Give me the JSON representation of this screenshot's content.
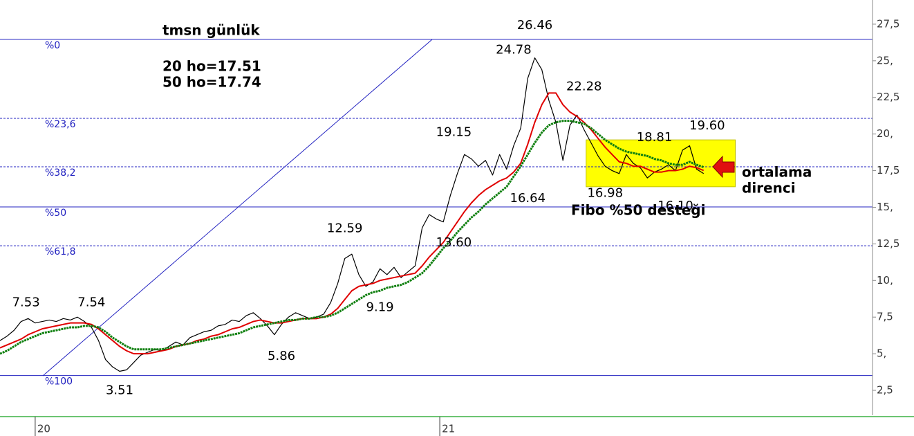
{
  "chart_data": {
    "type": "line",
    "texts": {
      "title": "tmsn günlük",
      "ma20_note": "20 ho=17.51",
      "ma50_note": "50 ho=17.74",
      "support": "Fibo %50 desteği",
      "resistance_1": "ortalama",
      "resistance_2": "direnci"
    },
    "xlim": [
      0,
      124
    ],
    "ylim": [
      0.8,
      29.15
    ],
    "xticks": [
      {
        "value": 5,
        "label": "20"
      },
      {
        "value": 62.5,
        "label": "21"
      }
    ],
    "yticks": [
      {
        "value": 2.5,
        "label": "2,5"
      },
      {
        "value": 5,
        "label": "5,"
      },
      {
        "value": 7.5,
        "label": "7,5"
      },
      {
        "value": 10,
        "label": "10,"
      },
      {
        "value": 12.5,
        "label": "12,5"
      },
      {
        "value": 15,
        "label": "15,"
      },
      {
        "value": 17.5,
        "label": "17,5"
      },
      {
        "value": 20,
        "label": "20,"
      },
      {
        "value": 22.5,
        "label": "22,5"
      },
      {
        "value": 25,
        "label": "25,"
      },
      {
        "value": 27.5,
        "label": "27,5"
      }
    ],
    "x": [
      0,
      1,
      2,
      3,
      4,
      5,
      6,
      7,
      8,
      9,
      10,
      11,
      12,
      13,
      14,
      15,
      16,
      17,
      18,
      19,
      20,
      21,
      22,
      23,
      24,
      25,
      26,
      27,
      28,
      29,
      30,
      31,
      32,
      33,
      34,
      35,
      36,
      37,
      38,
      39,
      40,
      41,
      42,
      43,
      44,
      45,
      46,
      47,
      48,
      49,
      50,
      51,
      52,
      53,
      54,
      55,
      56,
      57,
      58,
      59,
      60,
      61,
      62,
      63,
      64,
      65,
      66,
      67,
      68,
      69,
      70,
      71,
      72,
      73,
      74,
      75,
      76,
      77,
      78,
      79,
      80,
      81,
      82,
      83,
      84,
      85,
      86,
      87,
      88,
      89,
      90,
      91,
      92,
      93,
      94,
      95,
      96,
      97,
      98,
      99,
      100
    ],
    "series": [
      {
        "name": "tmsn",
        "color": "#000000",
        "values": [
          5.9,
          6.2,
          6.6,
          7.2,
          7.4,
          7.1,
          7.2,
          7.3,
          7.2,
          7.4,
          7.3,
          7.5,
          7.2,
          6.8,
          5.9,
          4.6,
          4.1,
          3.8,
          3.9,
          4.4,
          4.9,
          5.1,
          5.3,
          5.2,
          5.5,
          5.8,
          5.6,
          6.1,
          6.3,
          6.5,
          6.6,
          6.9,
          7.0,
          7.3,
          7.2,
          7.6,
          7.8,
          7.4,
          6.9,
          6.3,
          7.0,
          7.5,
          7.8,
          7.6,
          7.4,
          7.5,
          7.7,
          8.5,
          9.8,
          11.5,
          11.8,
          10.4,
          9.6,
          9.9,
          10.8,
          10.4,
          10.9,
          10.2,
          10.6,
          11.0,
          13.6,
          14.5,
          14.2,
          14.0,
          15.8,
          17.3,
          18.6,
          18.3,
          17.8,
          18.2,
          17.2,
          18.6,
          17.6,
          19.2,
          20.4,
          23.8,
          25.2,
          24.4,
          22.3,
          20.8,
          18.2,
          20.6,
          21.3,
          20.3,
          19.4,
          18.5,
          17.8,
          17.5,
          17.3,
          18.6,
          18.0,
          17.7,
          17.0,
          17.4,
          17.6,
          17.9,
          17.5,
          18.9,
          19.2,
          17.6,
          17.3
        ]
      },
      {
        "name": "20 ho",
        "color": "#e00000",
        "values": [
          5.4,
          5.6,
          5.8,
          6.0,
          6.3,
          6.5,
          6.7,
          6.8,
          6.9,
          7.0,
          7.1,
          7.1,
          7.1,
          7.0,
          6.7,
          6.3,
          5.9,
          5.5,
          5.2,
          5.0,
          5.0,
          5.0,
          5.1,
          5.2,
          5.3,
          5.5,
          5.6,
          5.7,
          5.9,
          6.0,
          6.2,
          6.3,
          6.5,
          6.7,
          6.8,
          7.0,
          7.2,
          7.3,
          7.2,
          7.1,
          7.1,
          7.2,
          7.3,
          7.4,
          7.4,
          7.4,
          7.5,
          7.7,
          8.1,
          8.7,
          9.3,
          9.6,
          9.7,
          9.8,
          10.0,
          10.1,
          10.2,
          10.3,
          10.4,
          10.5,
          11.0,
          11.6,
          12.1,
          12.6,
          13.3,
          14.0,
          14.7,
          15.3,
          15.8,
          16.2,
          16.5,
          16.8,
          17.0,
          17.4,
          18.0,
          19.3,
          20.8,
          22.0,
          22.8,
          22.8,
          22.0,
          21.5,
          21.2,
          20.8,
          20.3,
          19.7,
          19.1,
          18.6,
          18.1,
          18.0,
          17.8,
          17.8,
          17.6,
          17.4,
          17.4,
          17.5,
          17.5,
          17.6,
          17.8,
          17.7,
          17.51
        ]
      },
      {
        "name": "50 ho",
        "color": "#108010",
        "values": [
          5.0,
          5.2,
          5.5,
          5.8,
          6.0,
          6.2,
          6.4,
          6.5,
          6.6,
          6.7,
          6.8,
          6.8,
          6.9,
          6.9,
          6.8,
          6.5,
          6.1,
          5.8,
          5.5,
          5.3,
          5.3,
          5.3,
          5.3,
          5.3,
          5.4,
          5.5,
          5.6,
          5.7,
          5.8,
          5.9,
          6.0,
          6.1,
          6.2,
          6.3,
          6.4,
          6.6,
          6.8,
          6.9,
          7.0,
          7.1,
          7.2,
          7.3,
          7.3,
          7.4,
          7.4,
          7.5,
          7.5,
          7.6,
          7.8,
          8.1,
          8.4,
          8.7,
          9.0,
          9.2,
          9.3,
          9.5,
          9.6,
          9.7,
          9.9,
          10.2,
          10.5,
          11.0,
          11.6,
          12.2,
          12.7,
          13.3,
          13.8,
          14.3,
          14.7,
          15.2,
          15.6,
          16.0,
          16.4,
          17.1,
          17.8,
          18.6,
          19.4,
          20.1,
          20.6,
          20.8,
          20.9,
          20.9,
          20.8,
          20.7,
          20.4,
          20.0,
          19.6,
          19.3,
          19.0,
          18.8,
          18.7,
          18.6,
          18.5,
          18.3,
          18.2,
          18.0,
          17.9,
          17.9,
          18.1,
          17.9,
          17.74
        ]
      }
    ],
    "fib_levels": [
      {
        "label": "%0",
        "value": 26.46,
        "style": "solid"
      },
      {
        "label": "%23,6",
        "value": 21.07,
        "style": "dashed"
      },
      {
        "label": "%38,2",
        "value": 17.76,
        "style": "dashed"
      },
      {
        "label": "%50",
        "value": 15.02,
        "style": "solid"
      },
      {
        "label": "%61,8",
        "value": 12.37,
        "style": "dashed"
      },
      {
        "label": "%100",
        "value": 3.51,
        "style": "solid"
      }
    ],
    "fib_color": "#2020c0",
    "highlight": {
      "x": [
        83.3,
        104.5
      ],
      "y": [
        16.4,
        19.6
      ],
      "color": "#ffff00"
    },
    "annotations": [
      {
        "text": "7.53",
        "x": 3.7,
        "y": 7.53,
        "position": "above"
      },
      {
        "text": "7.54",
        "x": 13,
        "y": 7.54,
        "position": "above"
      },
      {
        "text": "3.51",
        "x": 17,
        "y": 3.51,
        "position": "below"
      },
      {
        "text": "5.86",
        "x": 40,
        "y": 5.86,
        "position": "below"
      },
      {
        "text": "12.59",
        "x": 49,
        "y": 12.59,
        "position": "above"
      },
      {
        "text": "9.19",
        "x": 54,
        "y": 9.19,
        "position": "below"
      },
      {
        "text": "13.60",
        "x": 64.5,
        "y": 13.6,
        "position": "below"
      },
      {
        "text": "19.15",
        "x": 64.5,
        "y": 19.15,
        "position": "above"
      },
      {
        "text": "16.64",
        "x": 75,
        "y": 16.64,
        "position": "below"
      },
      {
        "text": "24.78",
        "x": 73,
        "y": 24.78,
        "position": "above"
      },
      {
        "text": "26.46",
        "x": 76,
        "y": 26.46,
        "position": "above"
      },
      {
        "text": "22.28",
        "x": 83,
        "y": 22.28,
        "position": "above"
      },
      {
        "text": "16.98",
        "x": 86,
        "y": 16.98,
        "position": "below"
      },
      {
        "text": "18.81",
        "x": 93,
        "y": 18.81,
        "position": "above"
      },
      {
        "text": "16.10",
        "x": 96,
        "y": 16.1,
        "position": "below"
      },
      {
        "text": "19.60",
        "x": 100.5,
        "y": 19.6,
        "position": "above"
      }
    ]
  }
}
